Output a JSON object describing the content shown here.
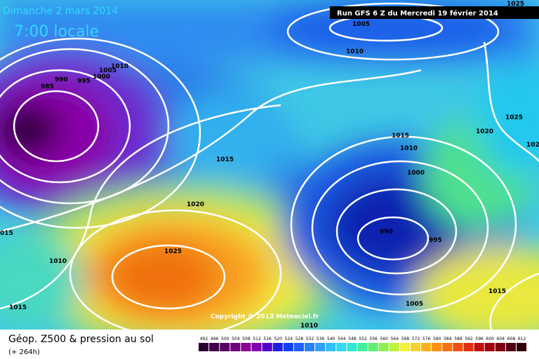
{
  "header": {
    "date": "Dimanche 2 mars 2014",
    "time": "7:00 locale",
    "run": "Run GFS 6 Z du Mercredi 19 février 2014"
  },
  "isobar_labels": [
    "1025",
    "1005",
    "1010",
    "1010",
    "1005",
    "1000",
    "995",
    "990",
    "985",
    "1015",
    "1020",
    "1025",
    "015",
    "1010",
    "1015",
    "1015",
    "1010",
    "1000",
    "990",
    "995",
    "1005",
    "1010",
    "1015",
    "1020",
    "1025",
    "102"
  ],
  "copyright": "Copyright © 2013 Meteociel.fr",
  "legend": {
    "title": "Géop. Z500 & pression au sol",
    "subtitle": "(+ 264h)",
    "scale": [
      "492",
      "496",
      "500",
      "504",
      "508",
      "512",
      "516",
      "520",
      "524",
      "528",
      "532",
      "536",
      "540",
      "544",
      "548",
      "552",
      "556",
      "560",
      "564",
      "568",
      "572",
      "576",
      "580",
      "584",
      "588",
      "592",
      "596",
      "600",
      "604",
      "608",
      "612"
    ]
  }
}
